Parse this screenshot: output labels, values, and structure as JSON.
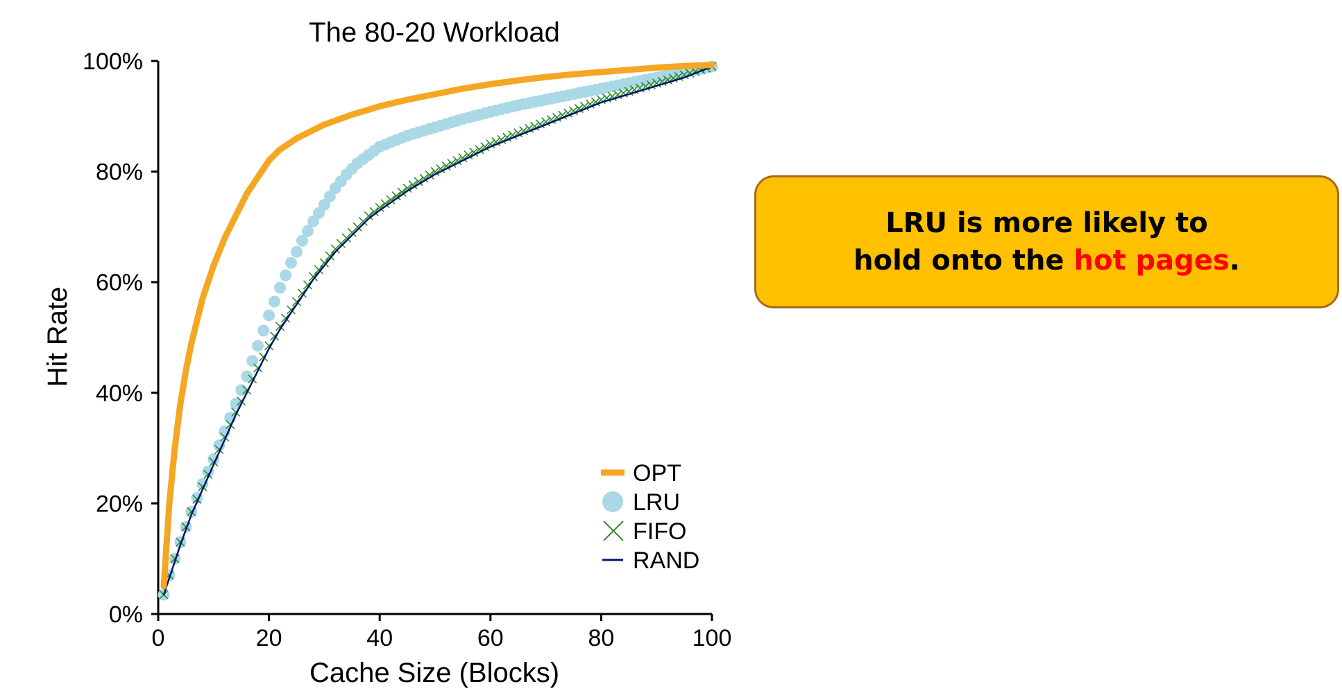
{
  "callout": {
    "line1": "LRU is more likely to",
    "line2_prefix": "hold onto the ",
    "line2_highlight": "hot pages",
    "line2_suffix": ".",
    "background": "#ffc000",
    "border": "#a9691b",
    "highlight_color": "#ff0000"
  },
  "chart_data": {
    "type": "line",
    "title": "The 80-20 Workload",
    "xlabel": "Cache Size (Blocks)",
    "ylabel": "Hit Rate",
    "xlim": [
      0,
      100
    ],
    "ylim": [
      0,
      100
    ],
    "x_ticks": [
      0,
      20,
      40,
      60,
      80,
      100
    ],
    "x_tick_labels": [
      "0",
      "20",
      "40",
      "60",
      "80",
      "100"
    ],
    "y_ticks": [
      0,
      20,
      40,
      60,
      80,
      100
    ],
    "y_tick_labels": [
      "0%",
      "20%",
      "40%",
      "60%",
      "80%",
      "100%"
    ],
    "grid": false,
    "legend_position": "bottom-right",
    "series": [
      {
        "name": "OPT",
        "color": "#f5a623",
        "marker": "thick-line",
        "x": [
          1,
          2,
          3,
          4,
          5,
          6,
          8,
          10,
          12,
          14,
          16,
          18,
          20,
          22,
          25,
          30,
          35,
          40,
          45,
          50,
          55,
          60,
          65,
          70,
          75,
          80,
          85,
          90,
          95,
          100
        ],
        "y": [
          5,
          20,
          30,
          38,
          44,
          49,
          57,
          63,
          68,
          72,
          76,
          79,
          82,
          84,
          86,
          88.5,
          90.3,
          91.8,
          93,
          94,
          95,
          95.8,
          96.5,
          97.1,
          97.6,
          98,
          98.4,
          98.8,
          99.1,
          99.3
        ]
      },
      {
        "name": "LRU",
        "color": "#aad8e6",
        "marker": "circle",
        "x": [
          1,
          2,
          4,
          6,
          8,
          10,
          12,
          14,
          16,
          18,
          20,
          22,
          24,
          26,
          28,
          30,
          32,
          34,
          36,
          38,
          40,
          45,
          50,
          55,
          60,
          65,
          70,
          75,
          80,
          85,
          90,
          95,
          100
        ],
        "y": [
          3.5,
          7,
          13,
          18.5,
          23.5,
          28,
          33,
          38,
          43,
          48.5,
          54,
          59,
          63.5,
          67.5,
          71,
          74,
          77,
          79.5,
          81.5,
          83,
          84.5,
          86.5,
          88,
          89.5,
          90.8,
          92,
          93,
          94,
          95,
          96,
          97,
          98,
          99
        ]
      },
      {
        "name": "FIFO",
        "color": "#2e8b2e",
        "marker": "x",
        "x": [
          1,
          2,
          4,
          6,
          8,
          10,
          12,
          14,
          16,
          18,
          20,
          22,
          24,
          26,
          28,
          30,
          32,
          34,
          36,
          38,
          40,
          45,
          50,
          55,
          60,
          65,
          70,
          75,
          80,
          85,
          90,
          95,
          100
        ],
        "y": [
          3.5,
          7,
          13,
          18.5,
          23,
          27.5,
          32,
          36.5,
          40.5,
          44.5,
          48.5,
          52,
          55,
          58,
          61,
          63.5,
          66,
          68,
          70,
          72,
          73.5,
          77,
          80,
          82.5,
          85,
          87,
          89,
          91,
          93,
          94.5,
          96,
          97.5,
          99
        ]
      },
      {
        "name": "RAND",
        "color": "#00136b",
        "marker": "line",
        "x": [
          1,
          2,
          4,
          6,
          8,
          10,
          12,
          14,
          16,
          18,
          20,
          22,
          24,
          26,
          28,
          30,
          32,
          34,
          36,
          38,
          40,
          45,
          50,
          55,
          60,
          65,
          70,
          75,
          80,
          85,
          90,
          95,
          100
        ],
        "y": [
          3.5,
          6.5,
          12.5,
          18,
          22.5,
          27,
          31.5,
          36,
          40,
          44,
          48,
          51.5,
          54.5,
          57.5,
          60.5,
          63,
          65.5,
          67.5,
          69.5,
          71.5,
          73,
          76.5,
          79.5,
          82,
          84.5,
          86.5,
          88.5,
          90.5,
          92.5,
          94,
          95.5,
          97,
          99
        ]
      }
    ]
  }
}
